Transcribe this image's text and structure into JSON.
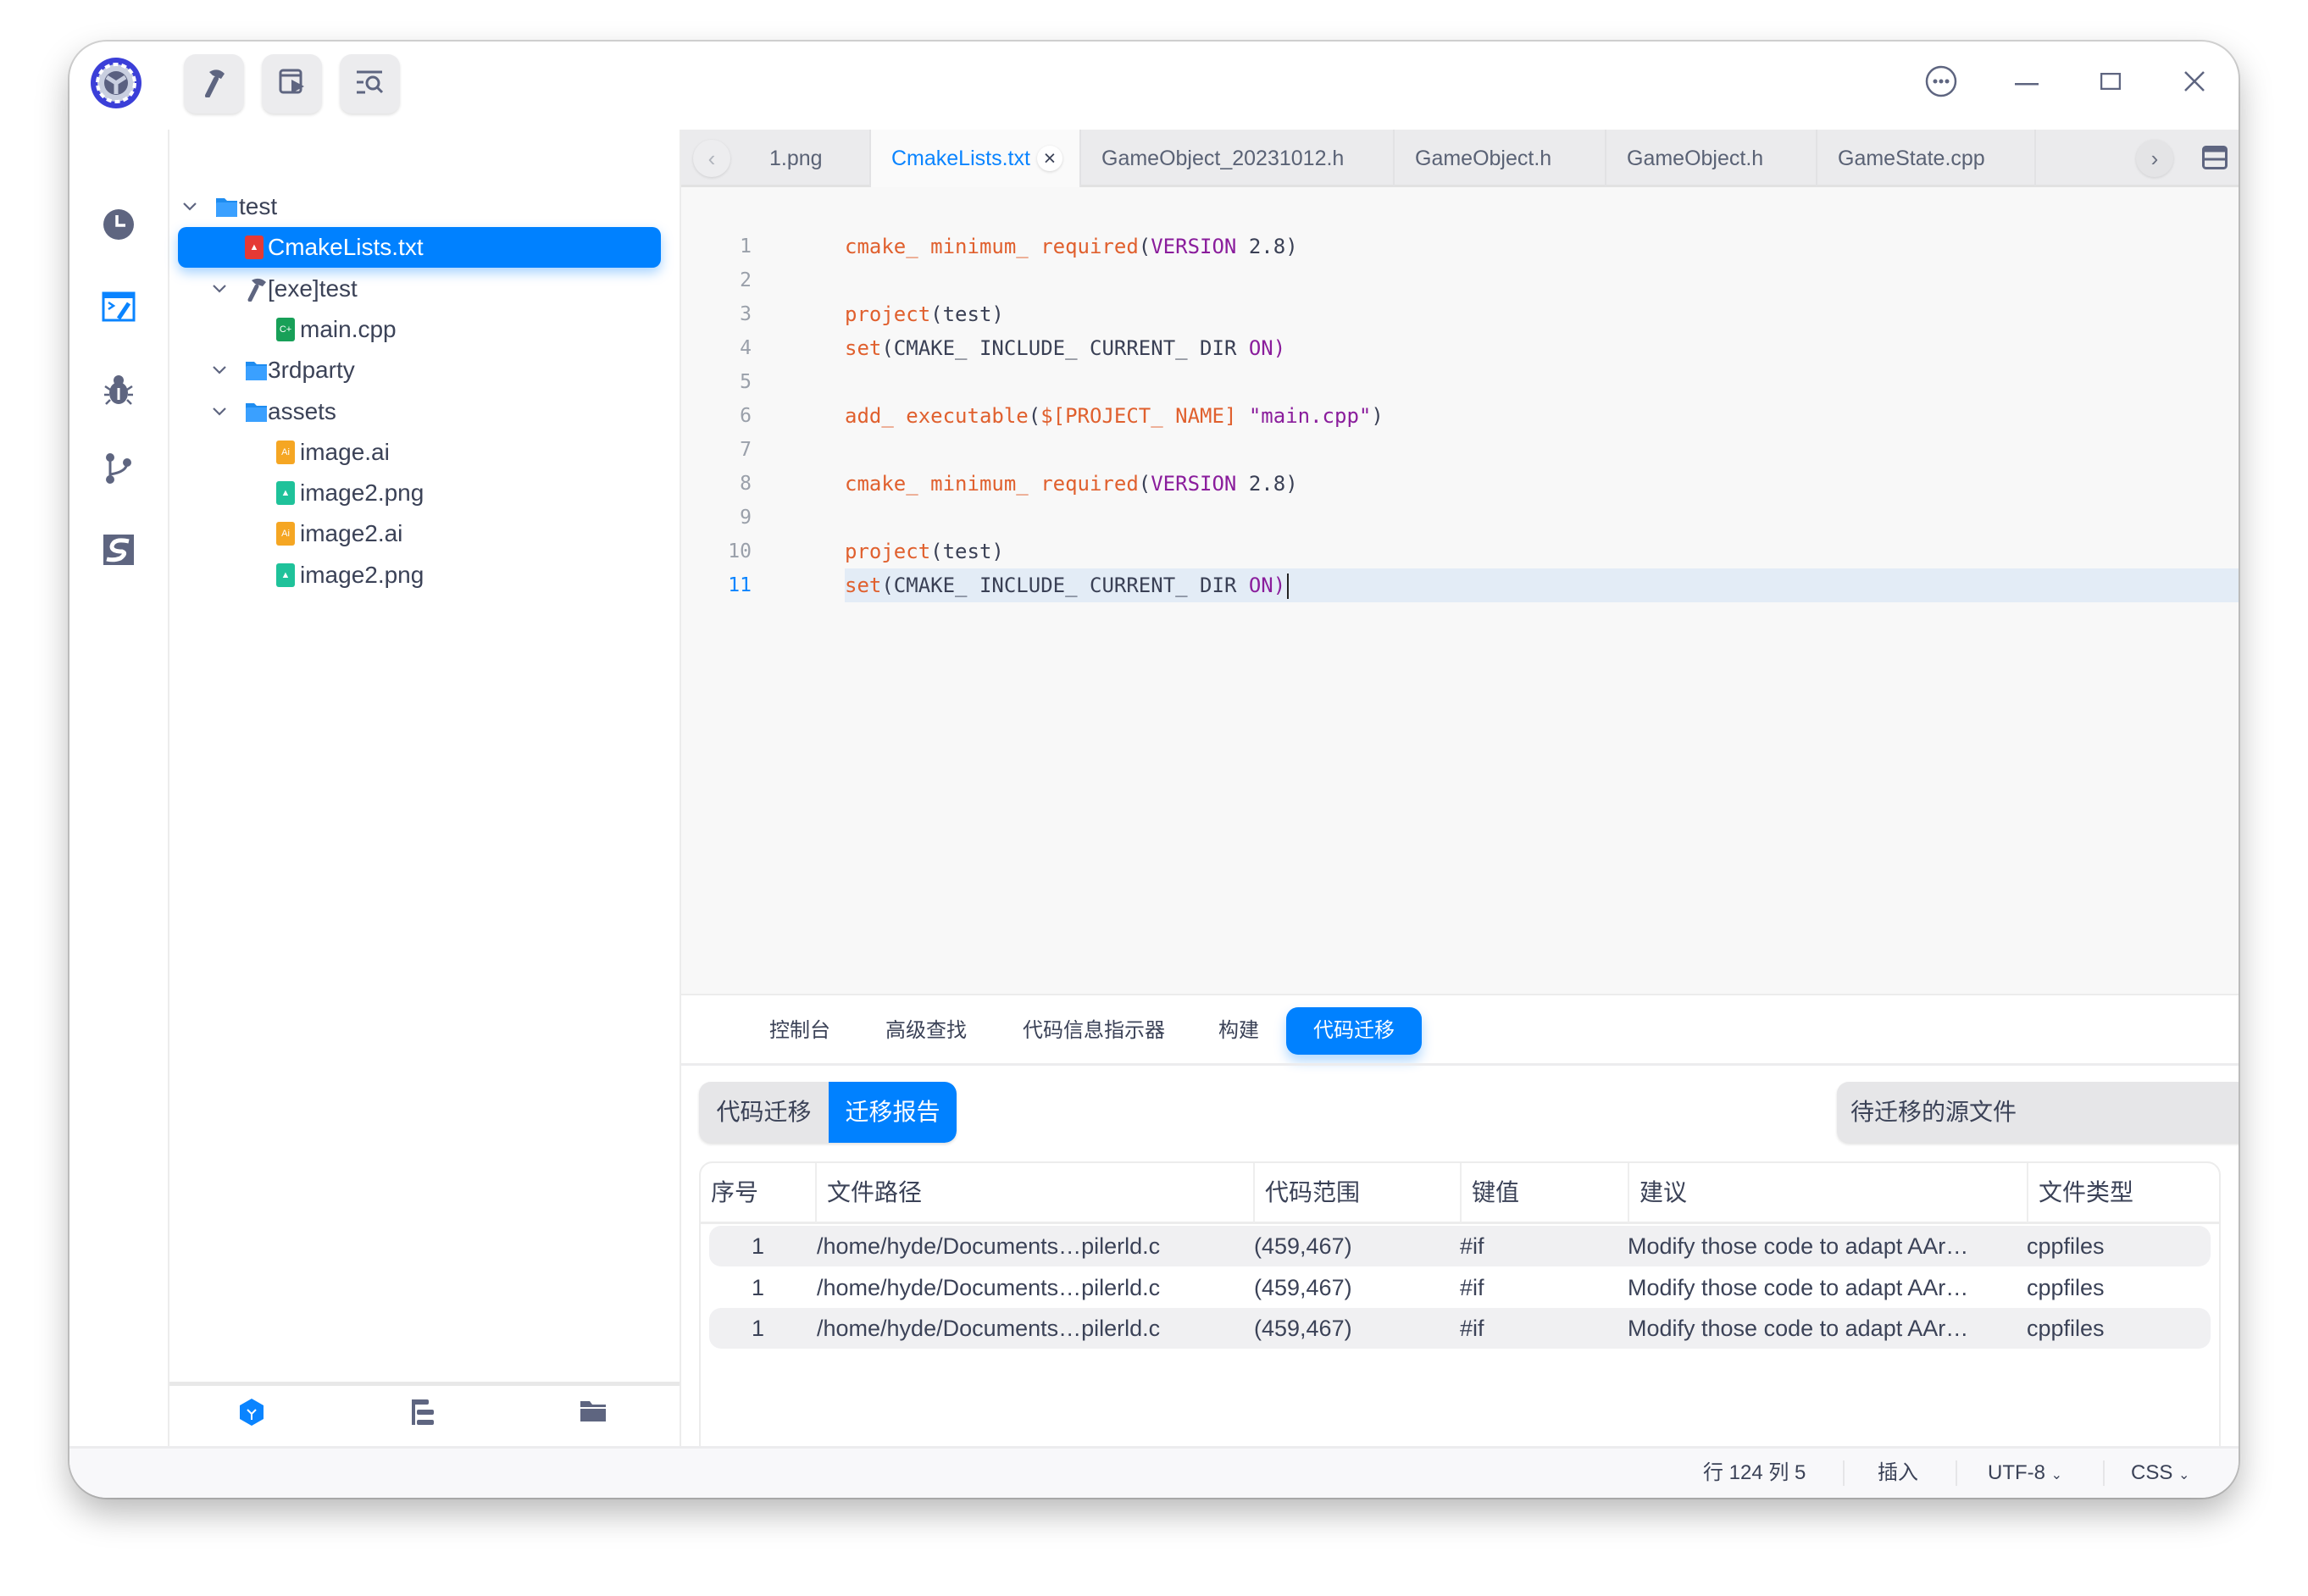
{
  "toolbar": {
    "buttons": [
      {
        "icon": "hammer-icon"
      },
      {
        "icon": "run-window-icon"
      },
      {
        "icon": "search-list-icon"
      }
    ]
  },
  "window_controls": {
    "more": "more-icon",
    "minimize": "minimize-icon",
    "maximize": "maximize-icon",
    "close": "close-icon"
  },
  "activity_bar": {
    "items": [
      "clock-icon",
      "editor-icon",
      "debug-icon",
      "git-branch-icon",
      "s-logo-icon"
    ],
    "active": 1
  },
  "file_tree": {
    "items": [
      {
        "label": "test",
        "icon": "folder",
        "level": 0,
        "expanded": true
      },
      {
        "label": "CmakeLists.txt",
        "icon": "cmake-file",
        "level": 1,
        "selected": true
      },
      {
        "label": "[exe]test",
        "icon": "hammer",
        "level": 1,
        "expanded": true
      },
      {
        "label": "main.cpp",
        "icon": "cpp-file",
        "level": 2
      },
      {
        "label": "3rdparty",
        "icon": "folder",
        "level": 1,
        "expanded": true
      },
      {
        "label": "assets",
        "icon": "folder",
        "level": 1,
        "expanded": true
      },
      {
        "label": "image.ai",
        "icon": "ai-file",
        "level": 2
      },
      {
        "label": "image2.png",
        "icon": "png-file",
        "level": 2
      },
      {
        "label": "image2.ai",
        "icon": "ai-file",
        "level": 2
      },
      {
        "label": "image2.png",
        "icon": "png-file",
        "level": 2
      }
    ],
    "file_icon_text": {
      "cpp": "C+",
      "ai": "Ai",
      "png": "▲"
    },
    "bottom_tabs": [
      "project-cube-icon",
      "outline-icon",
      "folder-icon"
    ]
  },
  "editor": {
    "tabs": [
      {
        "label": "1.png"
      },
      {
        "label": "CmakeLists.txt",
        "active": true,
        "close": "×"
      },
      {
        "label": "GameObject_20231012.h"
      },
      {
        "label": "GameObject.h"
      },
      {
        "label": "GameObject.h"
      },
      {
        "label": "GameState.cpp"
      }
    ],
    "prev": "‹",
    "next": "›",
    "current_line": 11,
    "lines": [
      {
        "n": "1",
        "tokens": [
          {
            "t": "cmake_ minimum_ required",
            "c": "fn"
          },
          {
            "t": "(",
            "c": "tx"
          },
          {
            "t": "VERSION",
            "c": "kw"
          },
          {
            "t": " 2.8)",
            "c": "tx"
          }
        ]
      },
      {
        "n": "2",
        "tokens": []
      },
      {
        "n": "3",
        "tokens": [
          {
            "t": "project",
            "c": "fn"
          },
          {
            "t": "(test)",
            "c": "tx"
          }
        ]
      },
      {
        "n": "4",
        "tokens": [
          {
            "t": "set",
            "c": "fn"
          },
          {
            "t": "(CMAKE_ INCLUDE_ CURRENT_ DIR ",
            "c": "tx"
          },
          {
            "t": "ON)",
            "c": "kw"
          }
        ]
      },
      {
        "n": "5",
        "tokens": []
      },
      {
        "n": "6",
        "tokens": [
          {
            "t": "add_ executable",
            "c": "fn"
          },
          {
            "t": "(",
            "c": "tx"
          },
          {
            "t": "$[PROJECT_ NAME]",
            "c": "fn"
          },
          {
            "t": " ",
            "c": "tx"
          },
          {
            "t": "\"main.cpp\"",
            "c": "kw"
          },
          {
            "t": ")",
            "c": "tx"
          }
        ]
      },
      {
        "n": "7",
        "tokens": []
      },
      {
        "n": "8",
        "tokens": [
          {
            "t": "cmake_ minimum_ required",
            "c": "fn"
          },
          {
            "t": "(",
            "c": "tx"
          },
          {
            "t": "VERSION",
            "c": "kw"
          },
          {
            "t": " 2.8)",
            "c": "tx"
          }
        ]
      },
      {
        "n": "9",
        "tokens": []
      },
      {
        "n": "10",
        "tokens": [
          {
            "t": "project",
            "c": "fn"
          },
          {
            "t": "(test)",
            "c": "tx"
          }
        ]
      },
      {
        "n": "11",
        "tokens": [
          {
            "t": "set",
            "c": "fn"
          },
          {
            "t": "(CMAKE_ INCLUDE_ CURRENT_ DIR ",
            "c": "tx"
          },
          {
            "t": "ON)",
            "c": "kw"
          }
        ]
      }
    ]
  },
  "panel": {
    "tabs": [
      "控制台",
      "高级查找",
      "代码信息指示器",
      "构建",
      "代码迁移"
    ],
    "active_tab": 4,
    "segment": {
      "options": [
        "代码迁移",
        "迁移报告"
      ],
      "active": 1
    },
    "dropdown": {
      "value": "待迁移的源文件"
    },
    "table": {
      "headers": [
        "序号",
        "文件路径",
        "代码范围",
        "键值",
        "建议",
        "文件类型"
      ],
      "rows": [
        [
          "1",
          "/home/hyde/Documents…pilerld.c",
          "(459,467)",
          "#if",
          "Modify those code to adapt AAr…",
          "cppfiles"
        ],
        [
          "1",
          "/home/hyde/Documents…pilerld.c",
          "(459,467)",
          "#if",
          "Modify those code to adapt AAr…",
          "cppfiles"
        ],
        [
          "1",
          "/home/hyde/Documents…pilerld.c",
          "(459,467)",
          "#if",
          "Modify those code to adapt AAr…",
          "cppfiles"
        ]
      ]
    }
  },
  "status_bar": {
    "position": "行 124 列 5",
    "mode": "插入",
    "encoding": "UTF-8",
    "language": "CSS"
  },
  "colors": {
    "accent": "#0081ff",
    "function": "#e0602e",
    "keyword": "#8a1d9c",
    "text": "#3b4257"
  }
}
